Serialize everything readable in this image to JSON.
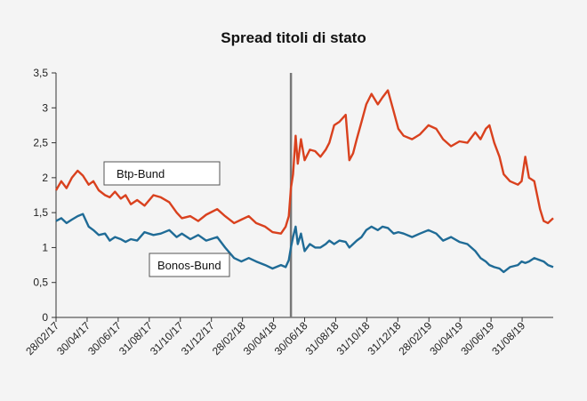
{
  "chart_data": {
    "type": "line",
    "title": "Spread titoli di stato",
    "xlabel": "",
    "ylabel": "",
    "ylim": [
      0,
      3.5
    ],
    "y_ticks": [
      "0",
      "0,5",
      "1",
      "1,5",
      "2",
      "2,5",
      "3",
      "3,5"
    ],
    "y_tick_values": [
      0,
      0.5,
      1,
      1.5,
      2,
      2.5,
      3,
      3.5
    ],
    "x_tick_labels": [
      "28/02/17",
      "30/04/17",
      "30/06/17",
      "31/08/17",
      "31/10/17",
      "31/12/17",
      "28/02/18",
      "30/04/18",
      "30/06/18",
      "31/08/18",
      "31/10/18",
      "31/12/18",
      "28/02/19",
      "30/04/19",
      "30/06/19",
      "31/08/19"
    ],
    "xlim": [
      "2017-02-28",
      "2019-09-30"
    ],
    "vertical_marker": "2018-05-20",
    "grid": false,
    "series": [
      {
        "name": "Btp-Bund",
        "color": "#d9411e",
        "points": [
          [
            "2017-02-28",
            1.82
          ],
          [
            "2017-03-10",
            1.95
          ],
          [
            "2017-03-20",
            1.85
          ],
          [
            "2017-03-30",
            2.0
          ],
          [
            "2017-04-10",
            2.1
          ],
          [
            "2017-04-20",
            2.03
          ],
          [
            "2017-05-01",
            1.9
          ],
          [
            "2017-05-10",
            1.95
          ],
          [
            "2017-05-20",
            1.82
          ],
          [
            "2017-06-01",
            1.75
          ],
          [
            "2017-06-10",
            1.72
          ],
          [
            "2017-06-20",
            1.8
          ],
          [
            "2017-07-01",
            1.7
          ],
          [
            "2017-07-10",
            1.75
          ],
          [
            "2017-07-20",
            1.62
          ],
          [
            "2017-08-01",
            1.68
          ],
          [
            "2017-08-15",
            1.6
          ],
          [
            "2017-09-01",
            1.75
          ],
          [
            "2017-09-15",
            1.72
          ],
          [
            "2017-10-01",
            1.65
          ],
          [
            "2017-10-15",
            1.5
          ],
          [
            "2017-10-25",
            1.42
          ],
          [
            "2017-11-10",
            1.45
          ],
          [
            "2017-11-25",
            1.38
          ],
          [
            "2017-12-10",
            1.47
          ],
          [
            "2017-12-31",
            1.55
          ],
          [
            "2018-01-15",
            1.45
          ],
          [
            "2018-02-01",
            1.35
          ],
          [
            "2018-02-15",
            1.4
          ],
          [
            "2018-03-01",
            1.45
          ],
          [
            "2018-03-15",
            1.35
          ],
          [
            "2018-04-01",
            1.3
          ],
          [
            "2018-04-15",
            1.22
          ],
          [
            "2018-05-01",
            1.2
          ],
          [
            "2018-05-10",
            1.3
          ],
          [
            "2018-05-16",
            1.45
          ],
          [
            "2018-05-20",
            1.85
          ],
          [
            "2018-05-24",
            2.05
          ],
          [
            "2018-05-29",
            2.6
          ],
          [
            "2018-06-02",
            2.2
          ],
          [
            "2018-06-08",
            2.55
          ],
          [
            "2018-06-15",
            2.25
          ],
          [
            "2018-06-25",
            2.4
          ],
          [
            "2018-07-05",
            2.38
          ],
          [
            "2018-07-15",
            2.3
          ],
          [
            "2018-07-25",
            2.4
          ],
          [
            "2018-08-01",
            2.5
          ],
          [
            "2018-08-10",
            2.75
          ],
          [
            "2018-08-20",
            2.8
          ],
          [
            "2018-09-01",
            2.9
          ],
          [
            "2018-09-08",
            2.25
          ],
          [
            "2018-09-15",
            2.35
          ],
          [
            "2018-09-22",
            2.55
          ],
          [
            "2018-10-01",
            2.8
          ],
          [
            "2018-10-10",
            3.05
          ],
          [
            "2018-10-20",
            3.2
          ],
          [
            "2018-11-01",
            3.05
          ],
          [
            "2018-11-10",
            3.15
          ],
          [
            "2018-11-20",
            3.25
          ],
          [
            "2018-12-01",
            2.95
          ],
          [
            "2018-12-10",
            2.7
          ],
          [
            "2018-12-20",
            2.6
          ],
          [
            "2019-01-05",
            2.55
          ],
          [
            "2019-01-20",
            2.62
          ],
          [
            "2019-02-05",
            2.75
          ],
          [
            "2019-02-20",
            2.7
          ],
          [
            "2019-03-05",
            2.55
          ],
          [
            "2019-03-20",
            2.45
          ],
          [
            "2019-04-05",
            2.52
          ],
          [
            "2019-04-20",
            2.5
          ],
          [
            "2019-05-05",
            2.65
          ],
          [
            "2019-05-15",
            2.55
          ],
          [
            "2019-05-25",
            2.7
          ],
          [
            "2019-06-01",
            2.75
          ],
          [
            "2019-06-10",
            2.5
          ],
          [
            "2019-06-20",
            2.3
          ],
          [
            "2019-06-28",
            2.05
          ],
          [
            "2019-07-10",
            1.95
          ],
          [
            "2019-07-25",
            1.9
          ],
          [
            "2019-08-01",
            1.95
          ],
          [
            "2019-08-08",
            2.3
          ],
          [
            "2019-08-15",
            2.0
          ],
          [
            "2019-08-25",
            1.95
          ],
          [
            "2019-09-05",
            1.55
          ],
          [
            "2019-09-12",
            1.38
          ],
          [
            "2019-09-20",
            1.35
          ],
          [
            "2019-09-30",
            1.42
          ]
        ]
      },
      {
        "name": "Bonos-Bund",
        "color": "#1f6b96",
        "points": [
          [
            "2017-02-28",
            1.38
          ],
          [
            "2017-03-10",
            1.42
          ],
          [
            "2017-03-20",
            1.35
          ],
          [
            "2017-03-30",
            1.4
          ],
          [
            "2017-04-10",
            1.45
          ],
          [
            "2017-04-20",
            1.48
          ],
          [
            "2017-05-01",
            1.3
          ],
          [
            "2017-05-10",
            1.25
          ],
          [
            "2017-05-20",
            1.18
          ],
          [
            "2017-06-01",
            1.2
          ],
          [
            "2017-06-10",
            1.1
          ],
          [
            "2017-06-20",
            1.15
          ],
          [
            "2017-07-01",
            1.12
          ],
          [
            "2017-07-10",
            1.08
          ],
          [
            "2017-07-20",
            1.12
          ],
          [
            "2017-08-01",
            1.1
          ],
          [
            "2017-08-15",
            1.22
          ],
          [
            "2017-09-01",
            1.18
          ],
          [
            "2017-09-15",
            1.2
          ],
          [
            "2017-10-01",
            1.25
          ],
          [
            "2017-10-15",
            1.15
          ],
          [
            "2017-10-25",
            1.2
          ],
          [
            "2017-11-10",
            1.12
          ],
          [
            "2017-11-25",
            1.18
          ],
          [
            "2017-12-10",
            1.1
          ],
          [
            "2017-12-31",
            1.15
          ],
          [
            "2018-01-15",
            1.0
          ],
          [
            "2018-02-01",
            0.85
          ],
          [
            "2018-02-15",
            0.8
          ],
          [
            "2018-03-01",
            0.85
          ],
          [
            "2018-03-15",
            0.8
          ],
          [
            "2018-04-01",
            0.75
          ],
          [
            "2018-04-15",
            0.7
          ],
          [
            "2018-05-01",
            0.75
          ],
          [
            "2018-05-10",
            0.72
          ],
          [
            "2018-05-16",
            0.82
          ],
          [
            "2018-05-20",
            1.0
          ],
          [
            "2018-05-24",
            1.15
          ],
          [
            "2018-05-29",
            1.3
          ],
          [
            "2018-06-02",
            1.05
          ],
          [
            "2018-06-08",
            1.2
          ],
          [
            "2018-06-15",
            0.95
          ],
          [
            "2018-06-25",
            1.05
          ],
          [
            "2018-07-05",
            1.0
          ],
          [
            "2018-07-15",
            1.0
          ],
          [
            "2018-07-25",
            1.05
          ],
          [
            "2018-08-01",
            1.1
          ],
          [
            "2018-08-10",
            1.05
          ],
          [
            "2018-08-20",
            1.1
          ],
          [
            "2018-09-01",
            1.08
          ],
          [
            "2018-09-08",
            1.0
          ],
          [
            "2018-09-15",
            1.05
          ],
          [
            "2018-09-22",
            1.1
          ],
          [
            "2018-10-01",
            1.15
          ],
          [
            "2018-10-10",
            1.25
          ],
          [
            "2018-10-20",
            1.3
          ],
          [
            "2018-11-01",
            1.25
          ],
          [
            "2018-11-10",
            1.3
          ],
          [
            "2018-11-20",
            1.28
          ],
          [
            "2018-12-01",
            1.2
          ],
          [
            "2018-12-10",
            1.22
          ],
          [
            "2018-12-20",
            1.2
          ],
          [
            "2019-01-05",
            1.15
          ],
          [
            "2019-01-20",
            1.2
          ],
          [
            "2019-02-05",
            1.25
          ],
          [
            "2019-02-20",
            1.2
          ],
          [
            "2019-03-05",
            1.1
          ],
          [
            "2019-03-20",
            1.15
          ],
          [
            "2019-04-05",
            1.08
          ],
          [
            "2019-04-20",
            1.05
          ],
          [
            "2019-05-05",
            0.95
          ],
          [
            "2019-05-15",
            0.85
          ],
          [
            "2019-05-25",
            0.8
          ],
          [
            "2019-06-01",
            0.75
          ],
          [
            "2019-06-10",
            0.72
          ],
          [
            "2019-06-20",
            0.7
          ],
          [
            "2019-06-28",
            0.65
          ],
          [
            "2019-07-10",
            0.72
          ],
          [
            "2019-07-25",
            0.75
          ],
          [
            "2019-08-01",
            0.8
          ],
          [
            "2019-08-08",
            0.78
          ],
          [
            "2019-08-15",
            0.8
          ],
          [
            "2019-08-25",
            0.85
          ],
          [
            "2019-09-05",
            0.82
          ],
          [
            "2019-09-12",
            0.8
          ],
          [
            "2019-09-20",
            0.75
          ],
          [
            "2019-09-30",
            0.72
          ]
        ]
      }
    ]
  }
}
